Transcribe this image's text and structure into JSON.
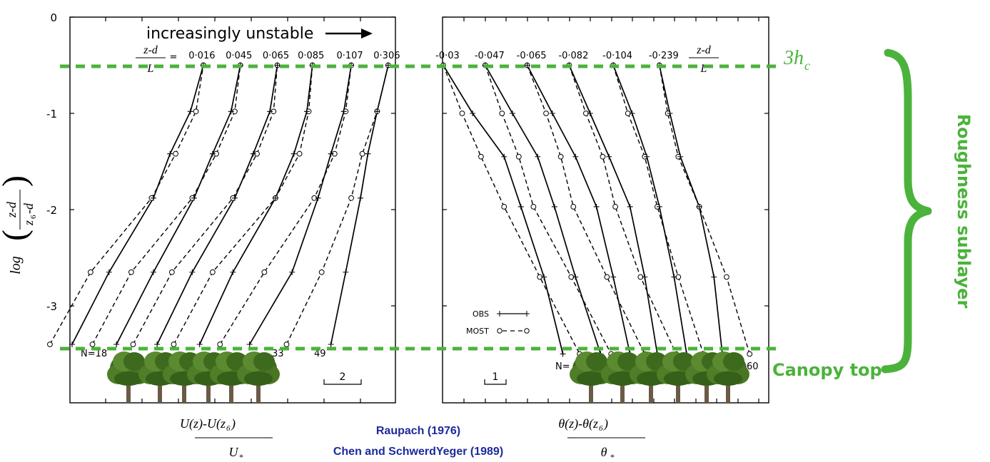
{
  "figure": {
    "arrow_label": "increasingly unstable",
    "three_hc_label": "3h",
    "three_hc_sub": "c",
    "canopy_label": "Canopy top",
    "sublayer_label": "Roughness sublayer",
    "citation_1": "Raupach (1976)",
    "citation_2": "Chen and SchwerdYeger (1989)",
    "zdL_num": "z-d",
    "zdL_den": "L",
    "zdL_eq": "=",
    "ylabel_log": "log",
    "ylabel_num": "z-d",
    "ylabel_den_z": "z",
    "ylabel_den_sub": "6",
    "ylabel_den_d": "-d",
    "left_xlabel_num": "U(z)-U(z",
    "left_xlabel_sub": "6",
    "left_xlabel_close": ")",
    "left_xlabel_den": "U",
    "left_xlabel_den_sub": "*",
    "right_xlabel_num": "θ(z)-θ(z",
    "right_xlabel_sub": "6",
    "right_xlabel_close": ")",
    "right_xlabel_den": "θ",
    "right_xlabel_den_sub": "*",
    "legend_obs": "OBS",
    "legend_most": "MOST",
    "n_left": "N=18",
    "n_left_mid": "33",
    "n_left_end": "49",
    "n_right": "N=",
    "n_right_end": "60",
    "scale_left": "2",
    "scale_right": "1",
    "colors": {
      "green": "#4bb33b",
      "blue": "#1c2a9b",
      "black": "#000000"
    }
  },
  "chart_data": [
    {
      "type": "line",
      "panel": "left",
      "title": "",
      "xlabel": "U(z)-U(z6) / U*",
      "ylabel": "log((z-d)/(z6-d))",
      "ylim": [
        -3.5,
        0
      ],
      "yticks": [
        0,
        -1,
        -2,
        -3
      ],
      "scale_bar_units": 2,
      "zdL_label": "z-d / L =",
      "stability_labels": [
        "0·016",
        "0·045",
        "0·065",
        "0·085",
        "0·107",
        "0·306"
      ],
      "series": [
        {
          "zdL": "0·016",
          "obs": [
            [
              0,
              -3.4
            ],
            [
              2.0,
              -2.65
            ],
            [
              4.4,
              -1.88
            ],
            [
              5.3,
              -1.42
            ],
            [
              6.4,
              -0.98
            ],
            [
              7.1,
              -0.5
            ]
          ],
          "most": [
            [
              -1.2,
              -3.4
            ],
            [
              1.0,
              -2.65
            ],
            [
              4.3,
              -1.88
            ],
            [
              5.6,
              -1.42
            ],
            [
              6.7,
              -0.98
            ],
            [
              7.1,
              -0.5
            ]
          ]
        },
        {
          "zdL": "0·045",
          "obs": [
            [
              2.4,
              -3.4
            ],
            [
              4.4,
              -2.65
            ],
            [
              6.6,
              -1.88
            ],
            [
              7.6,
              -1.42
            ],
            [
              8.6,
              -0.98
            ],
            [
              9.1,
              -0.5
            ]
          ],
          "most": [
            [
              1.1,
              -3.4
            ],
            [
              3.2,
              -2.65
            ],
            [
              6.5,
              -1.88
            ],
            [
              7.8,
              -1.42
            ],
            [
              8.8,
              -0.98
            ],
            [
              9.1,
              -0.5
            ]
          ]
        },
        {
          "zdL": "0·065",
          "obs": [
            [
              4.6,
              -3.4
            ],
            [
              6.5,
              -2.65
            ],
            [
              8.8,
              -1.88
            ],
            [
              9.8,
              -1.42
            ],
            [
              10.7,
              -0.98
            ],
            [
              11.1,
              -0.5
            ]
          ],
          "most": [
            [
              3.3,
              -3.4
            ],
            [
              5.4,
              -2.65
            ],
            [
              8.7,
              -1.88
            ],
            [
              10.0,
              -1.42
            ],
            [
              10.9,
              -0.98
            ],
            [
              11.1,
              -0.5
            ]
          ]
        },
        {
          "zdL": "0·085",
          "obs": [
            [
              6.9,
              -3.4
            ],
            [
              8.7,
              -2.65
            ],
            [
              11.0,
              -1.88
            ],
            [
              12.0,
              -1.42
            ],
            [
              12.7,
              -0.98
            ],
            [
              13.0,
              -0.5
            ]
          ],
          "most": [
            [
              5.5,
              -3.4
            ],
            [
              7.6,
              -2.65
            ],
            [
              11.0,
              -1.88
            ],
            [
              12.3,
              -1.42
            ],
            [
              12.8,
              -0.98
            ],
            [
              13.0,
              -0.5
            ]
          ]
        },
        {
          "zdL": "0·107",
          "obs": [
            [
              9.6,
              -3.4
            ],
            [
              11.9,
              -2.65
            ],
            [
              13.3,
              -1.88
            ],
            [
              14.0,
              -1.42
            ],
            [
              14.7,
              -0.98
            ],
            [
              15.1,
              -0.5
            ]
          ],
          "most": [
            [
              8.0,
              -3.4
            ],
            [
              10.4,
              -2.65
            ],
            [
              13.1,
              -1.88
            ],
            [
              14.2,
              -1.42
            ],
            [
              14.8,
              -0.98
            ],
            [
              15.1,
              -0.5
            ]
          ]
        },
        {
          "zdL": "0·306",
          "obs": [
            [
              14.0,
              -3.4
            ],
            [
              14.8,
              -2.65
            ],
            [
              15.6,
              -1.88
            ],
            [
              16.0,
              -1.42
            ],
            [
              16.5,
              -0.98
            ],
            [
              17.1,
              -0.5
            ]
          ],
          "most": [
            [
              11.6,
              -3.4
            ],
            [
              13.5,
              -2.65
            ],
            [
              15.1,
              -1.88
            ],
            [
              15.7,
              -1.42
            ],
            [
              16.5,
              -0.98
            ],
            [
              17.1,
              -0.5
            ]
          ]
        }
      ]
    },
    {
      "type": "line",
      "panel": "right",
      "title": "",
      "xlabel": "θ(z)-θ(z6) / θ*",
      "ylabel": "log((z-d)/(z6-d))",
      "ylim": [
        -3.5,
        0
      ],
      "yticks": [
        0,
        -1,
        -2,
        -3
      ],
      "scale_bar_units": 1,
      "zdL_label": "z-d / L",
      "stability_labels": [
        "-0·03",
        "-0·047",
        "-0·065",
        "-0·082",
        "-0·104",
        "-0·239"
      ],
      "series": [
        {
          "zdL": "-0·03",
          "obs": [
            [
              0,
              -0.5
            ],
            [
              1.4,
              -1.0
            ],
            [
              2.9,
              -1.45
            ],
            [
              3.7,
              -1.97
            ],
            [
              4.8,
              -2.7
            ],
            [
              5.7,
              -3.5
            ]
          ],
          "most": [
            [
              0,
              -0.5
            ],
            [
              0.9,
              -1.0
            ],
            [
              1.8,
              -1.45
            ],
            [
              2.9,
              -1.97
            ],
            [
              4.6,
              -2.7
            ],
            [
              6.5,
              -3.5
            ]
          ]
        },
        {
          "zdL": "-0·047",
          "obs": [
            [
              2.0,
              -0.5
            ],
            [
              3.3,
              -1.0
            ],
            [
              4.5,
              -1.45
            ],
            [
              5.3,
              -1.97
            ],
            [
              6.3,
              -2.7
            ],
            [
              7.5,
              -3.5
            ]
          ],
          "most": [
            [
              2.0,
              -0.5
            ],
            [
              2.8,
              -1.0
            ],
            [
              3.6,
              -1.45
            ],
            [
              4.3,
              -1.97
            ],
            [
              6.1,
              -2.7
            ],
            [
              8.0,
              -3.5
            ]
          ]
        },
        {
          "zdL": "-0·065",
          "obs": [
            [
              4.0,
              -0.5
            ],
            [
              5.2,
              -1.0
            ],
            [
              6.3,
              -1.45
            ],
            [
              7.3,
              -1.97
            ],
            [
              8.1,
              -2.7
            ],
            [
              8.9,
              -3.5
            ]
          ],
          "most": [
            [
              4.0,
              -0.5
            ],
            [
              4.9,
              -1.0
            ],
            [
              5.6,
              -1.45
            ],
            [
              6.2,
              -1.97
            ],
            [
              7.8,
              -2.7
            ],
            [
              9.6,
              -3.5
            ]
          ]
        },
        {
          "zdL": "-0·082",
          "obs": [
            [
              6.0,
              -0.5
            ],
            [
              7.0,
              -1.0
            ],
            [
              7.9,
              -1.45
            ],
            [
              8.9,
              -1.97
            ],
            [
              9.6,
              -2.7
            ],
            [
              10.2,
              -3.5
            ]
          ],
          "most": [
            [
              6.0,
              -0.5
            ],
            [
              6.8,
              -1.0
            ],
            [
              7.6,
              -1.45
            ],
            [
              8.2,
              -1.97
            ],
            [
              9.4,
              -2.7
            ],
            [
              11.1,
              -3.5
            ]
          ]
        },
        {
          "zdL": "-0·104",
          "obs": [
            [
              8.1,
              -0.5
            ],
            [
              9.0,
              -1.0
            ],
            [
              9.7,
              -1.45
            ],
            [
              10.3,
              -1.97
            ],
            [
              11.0,
              -2.7
            ],
            [
              11.6,
              -3.5
            ]
          ],
          "most": [
            [
              8.1,
              -0.5
            ],
            [
              8.8,
              -1.0
            ],
            [
              9.6,
              -1.45
            ],
            [
              10.2,
              -1.97
            ],
            [
              11.2,
              -2.7
            ],
            [
              12.4,
              -3.5
            ]
          ]
        },
        {
          "zdL": "-0·239",
          "obs": [
            [
              10.3,
              -0.5
            ],
            [
              10.8,
              -1.0
            ],
            [
              11.3,
              -1.45
            ],
            [
              12.2,
              -1.97
            ],
            [
              12.9,
              -2.7
            ],
            [
              13.3,
              -3.5
            ]
          ],
          "most": [
            [
              10.3,
              -0.5
            ],
            [
              10.7,
              -1.0
            ],
            [
              11.2,
              -1.45
            ],
            [
              12.2,
              -1.97
            ],
            [
              13.5,
              -2.7
            ],
            [
              14.6,
              -3.5
            ]
          ]
        }
      ]
    }
  ]
}
